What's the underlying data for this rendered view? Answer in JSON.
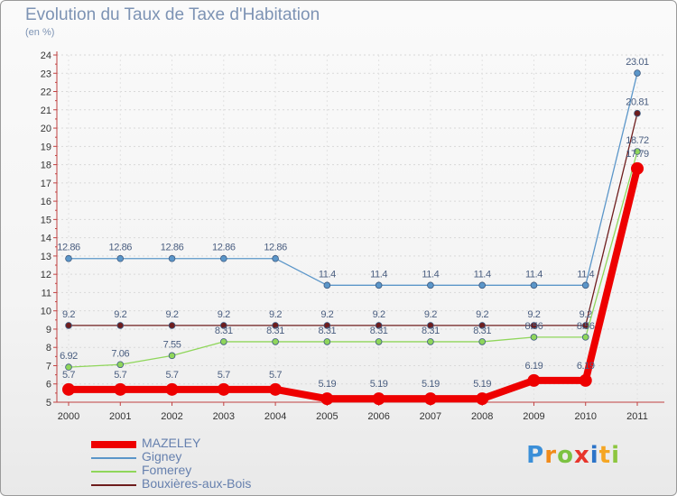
{
  "title": "Evolution du Taux de Taxe d'Habitation",
  "unit": "(en %)",
  "brand": {
    "letters": [
      "P",
      "r",
      "o",
      "x",
      "i",
      "t",
      "i"
    ],
    "colors": [
      "#3b8fd8",
      "#f18b1b",
      "#7cc242",
      "#e8352c",
      "#2c74c8",
      "#f5a623",
      "#8dc63f"
    ]
  },
  "chart_data": {
    "type": "line",
    "title": "Evolution du Taux de Taxe d'Habitation",
    "ylabel": "(en %)",
    "xlabel": "",
    "ylim": [
      5,
      24
    ],
    "yticks": [
      5,
      6,
      7,
      8,
      9,
      10,
      11,
      12,
      13,
      14,
      15,
      16,
      17,
      18,
      19,
      20,
      21,
      22,
      23,
      24
    ],
    "categories": [
      "2000",
      "2001",
      "2002",
      "2003",
      "2004",
      "2005",
      "2006",
      "2007",
      "2008",
      "2009",
      "2010",
      "2011"
    ],
    "series": [
      {
        "name": "Gigney",
        "color": "#5b96c9",
        "labelColor": "#4a5e80",
        "values": [
          12.86,
          12.86,
          12.86,
          12.86,
          12.86,
          11.4,
          11.4,
          11.4,
          11.4,
          11.4,
          11.4,
          23.01
        ],
        "labels": [
          "12.86",
          "12.86",
          "12.86",
          "12.86",
          "12.86",
          "11.4",
          "11.4",
          "11.4",
          "11.4",
          "11.4",
          "11.4",
          "23.01"
        ]
      },
      {
        "name": "Bouxières-aux-Bois",
        "color": "#6e1d1d",
        "labelColor": "#4a5e80",
        "values": [
          9.2,
          9.2,
          9.2,
          9.2,
          9.2,
          9.2,
          9.2,
          9.2,
          9.2,
          9.2,
          9.2,
          20.81
        ],
        "labels": [
          "9.2",
          "9.2",
          "9.2",
          "9.2",
          "9.2",
          "9.2",
          "9.2",
          "9.2",
          "9.2",
          "9.2",
          "9.2",
          "20.81"
        ]
      },
      {
        "name": "Fomerey",
        "color": "#8fd65a",
        "labelColor": "#4a5e80",
        "values": [
          6.92,
          7.06,
          7.55,
          8.31,
          8.31,
          8.31,
          8.31,
          8.31,
          8.31,
          8.56,
          8.56,
          18.72
        ],
        "labels": [
          "6.92",
          "7.06",
          "7.55",
          "8.31",
          "8.31",
          "8.31",
          "8.31",
          "8.31",
          "8.31",
          "8.56",
          "8.56",
          "18.72"
        ]
      },
      {
        "name": "MAZELEY",
        "color": "#ee0000",
        "labelColor": "#4a5e80",
        "values": [
          5.7,
          5.7,
          5.7,
          5.7,
          5.7,
          5.19,
          5.19,
          5.19,
          5.19,
          6.19,
          6.19,
          17.79
        ],
        "labels": [
          "5.7",
          "5.7",
          "5.7",
          "5.7",
          "5.7",
          "5.19",
          "5.19",
          "5.19",
          "5.19",
          "6.19",
          "6.19",
          "17.79"
        ]
      }
    ],
    "legend": [
      "MAZELEY",
      "Gigney",
      "Fomerey",
      "Bouxières-aux-Bois"
    ],
    "legend_position": "bottom-left"
  }
}
